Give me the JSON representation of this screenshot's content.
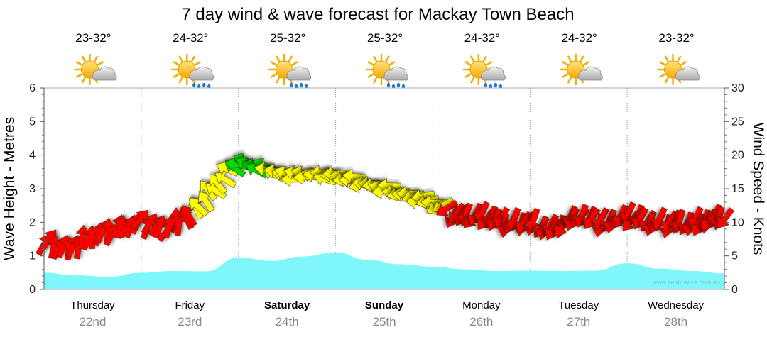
{
  "chart_data": {
    "type": "line",
    "title": "7 day wind & wave forecast for Mackay Town Beach",
    "y_left_label": "Wave Height - Metres",
    "y_right_label": "Wind Speed - Knots",
    "y_left_ticks": [
      "0",
      "1",
      "2",
      "3",
      "4",
      "5",
      "6"
    ],
    "y_right_ticks": [
      "0",
      "5",
      "10",
      "15",
      "20",
      "25",
      "30"
    ],
    "ylim_left": [
      0,
      6
    ],
    "ylim_right": [
      0,
      30
    ],
    "grid": true,
    "watermark": "www.seabreeze.com.au",
    "days": [
      {
        "name": "Thursday",
        "date": "22nd",
        "temp": "23-32°",
        "weather": "partly-cloudy-icon",
        "bold": false
      },
      {
        "name": "Friday",
        "date": "23rd",
        "temp": "24-32°",
        "weather": "showers-icon",
        "bold": false
      },
      {
        "name": "Saturday",
        "date": "24th",
        "temp": "25-32°",
        "weather": "showers-icon",
        "bold": true
      },
      {
        "name": "Sunday",
        "date": "25th",
        "temp": "25-32°",
        "weather": "showers-icon",
        "bold": true
      },
      {
        "name": "Monday",
        "date": "26th",
        "temp": "24-32°",
        "weather": "showers-icon",
        "bold": false
      },
      {
        "name": "Tuesday",
        "date": "27th",
        "temp": "24-32°",
        "weather": "partly-cloudy-icon",
        "bold": false
      },
      {
        "name": "Wednesday",
        "date": "28th",
        "temp": "23-32°",
        "weather": "partly-cloudy-icon",
        "bold": false
      }
    ],
    "series": [
      {
        "name": "Wave Height",
        "axis": "left",
        "color": "#7ff6fa",
        "x_hours": [
          0,
          8,
          16,
          24,
          32,
          40,
          48,
          56,
          64,
          72,
          80,
          88,
          96,
          104,
          112,
          120,
          128,
          136,
          144,
          152,
          160,
          168
        ],
        "values": [
          0.5,
          0.42,
          0.38,
          0.5,
          0.55,
          0.54,
          0.95,
          0.85,
          0.98,
          1.1,
          0.88,
          0.75,
          0.68,
          0.6,
          0.55,
          0.56,
          0.55,
          0.56,
          0.78,
          0.62,
          0.55,
          0.48
        ]
      },
      {
        "name": "Wind Speed",
        "axis": "right",
        "color_scale": {
          "low": "#ff0000",
          "mid": "#ffff00",
          "high": "#00dd00"
        },
        "x_hours": [
          0,
          6,
          12,
          18,
          24,
          30,
          36,
          42,
          48,
          54,
          60,
          66,
          72,
          78,
          84,
          90,
          96,
          102,
          108,
          114,
          120,
          126,
          132,
          138,
          144,
          150,
          156,
          162,
          168
        ],
        "values": [
          7,
          6,
          8,
          9,
          10,
          9,
          11,
          15,
          19,
          18,
          17,
          17,
          17,
          16,
          15,
          14,
          13,
          11,
          11,
          10,
          10,
          9,
          11,
          10,
          11,
          10,
          10,
          10,
          11
        ],
        "directions_deg": [
          300,
          285,
          280,
          290,
          300,
          300,
          240,
          225,
          200,
          200,
          190,
          190,
          180,
          180,
          185,
          175,
          170,
          120,
          120,
          110,
          110,
          115,
          120,
          110,
          120,
          115,
          110,
          110,
          115
        ]
      }
    ]
  }
}
